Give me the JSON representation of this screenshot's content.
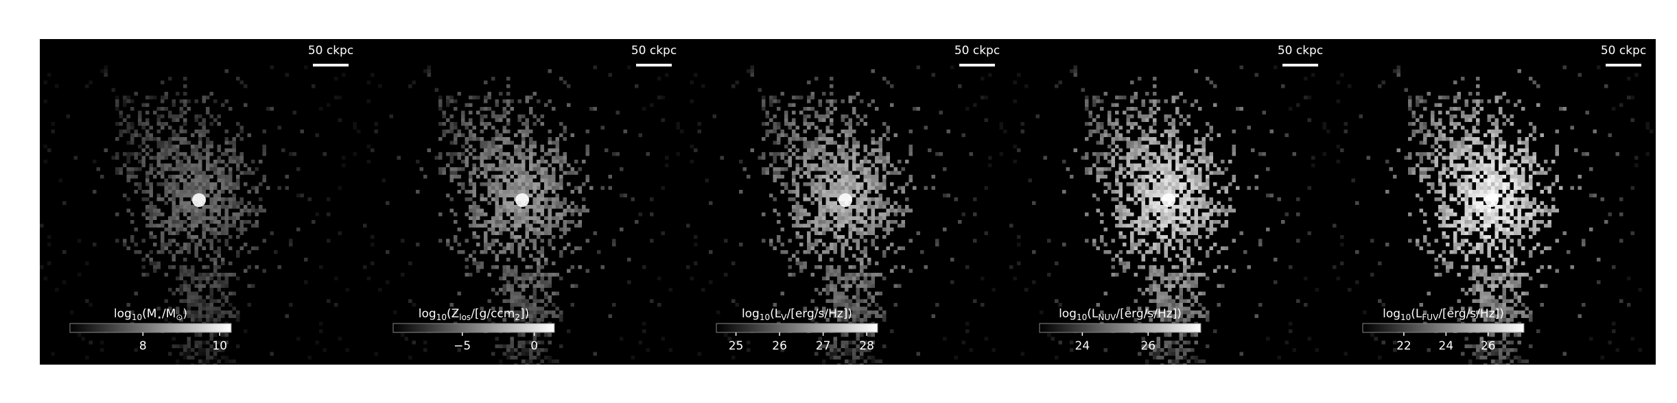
{
  "chart_data": [
    {
      "type": "image",
      "scalebar": "50 ckpc",
      "colorbar_label": [
        "log",
        "10",
        "(M",
        "⋆",
        "/M",
        "⊙",
        ")"
      ],
      "clim": [
        6.1,
        10.3
      ],
      "ticks": [
        8,
        10
      ],
      "brightness": 0.55
    },
    {
      "type": "image",
      "scalebar": "50 ckpc",
      "colorbar_label": [
        "log",
        "10",
        "(Z",
        "los",
        "/[g/ccm",
        "2",
        "])"
      ],
      "clim": [
        -9.8,
        1.4
      ],
      "ticks": [
        {
          "value": -5,
          "label": "−5"
        },
        0
      ],
      "brightness": 0.7
    },
    {
      "type": "image",
      "scalebar": "50 ckpc",
      "colorbar_label": [
        "log",
        "10",
        "(L",
        "V",
        "/[erg/s/Hz])"
      ],
      "clim": [
        24.55,
        28.25
      ],
      "ticks": [
        25,
        26,
        27,
        28
      ],
      "brightness": 0.78
    },
    {
      "type": "image",
      "scalebar": "50 ckpc",
      "colorbar_label": [
        "log",
        "10",
        "(L",
        "NUV",
        "/[erg/s/Hz])"
      ],
      "clim": [
        22.7,
        27.6
      ],
      "ticks": [
        24,
        26
      ],
      "brightness": 0.9
    },
    {
      "type": "image",
      "scalebar": "50 ckpc",
      "colorbar_label": [
        "log",
        "10",
        "(L",
        "FUV",
        "/[erg/s/Hz])"
      ],
      "clim": [
        20.05,
        27.7
      ],
      "ticks": [
        22,
        24,
        26
      ],
      "brightness": 0.95
    }
  ]
}
